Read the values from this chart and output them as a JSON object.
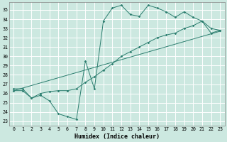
{
  "xlabel": "Humidex (Indice chaleur)",
  "bg_color": "#cce8e0",
  "grid_color": "#ffffff",
  "line_color": "#2a7d6e",
  "xlim": [
    -0.5,
    23.5
  ],
  "ylim": [
    22.5,
    35.8
  ],
  "xticks": [
    0,
    1,
    2,
    3,
    4,
    5,
    6,
    7,
    8,
    9,
    10,
    11,
    12,
    13,
    14,
    15,
    16,
    17,
    18,
    19,
    20,
    21,
    22,
    23
  ],
  "yticks": [
    23,
    24,
    25,
    26,
    27,
    28,
    29,
    30,
    31,
    32,
    33,
    34,
    35
  ],
  "line1_points": [
    [
      0,
      26.5
    ],
    [
      1,
      26.5
    ],
    [
      2,
      25.5
    ],
    [
      3,
      25.8
    ],
    [
      4,
      25.2
    ],
    [
      5,
      23.8
    ],
    [
      6,
      23.5
    ],
    [
      7,
      23.2
    ],
    [
      8,
      29.5
    ],
    [
      9,
      26.5
    ],
    [
      10,
      33.8
    ],
    [
      11,
      35.2
    ],
    [
      12,
      35.5
    ],
    [
      13,
      34.5
    ],
    [
      14,
      34.3
    ],
    [
      15,
      35.5
    ],
    [
      16,
      35.2
    ],
    [
      17,
      34.8
    ],
    [
      18,
      34.2
    ],
    [
      19,
      34.8
    ],
    [
      20,
      34.2
    ],
    [
      21,
      33.8
    ],
    [
      22,
      32.5
    ],
    [
      23,
      32.8
    ]
  ],
  "line2_points": [
    [
      0,
      26.3
    ],
    [
      23,
      32.7
    ]
  ],
  "line3_points": [
    [
      0,
      26.3
    ],
    [
      1,
      26.3
    ],
    [
      2,
      25.5
    ],
    [
      3,
      26.0
    ],
    [
      4,
      26.2
    ],
    [
      5,
      26.3
    ],
    [
      6,
      26.3
    ],
    [
      7,
      26.5
    ],
    [
      8,
      27.2
    ],
    [
      9,
      27.8
    ],
    [
      10,
      28.5
    ],
    [
      11,
      29.2
    ],
    [
      12,
      30.0
    ],
    [
      13,
      30.5
    ],
    [
      14,
      31.0
    ],
    [
      15,
      31.5
    ],
    [
      16,
      32.0
    ],
    [
      17,
      32.3
    ],
    [
      18,
      32.5
    ],
    [
      19,
      33.0
    ],
    [
      20,
      33.3
    ],
    [
      21,
      33.8
    ],
    [
      22,
      33.0
    ],
    [
      23,
      32.8
    ]
  ]
}
